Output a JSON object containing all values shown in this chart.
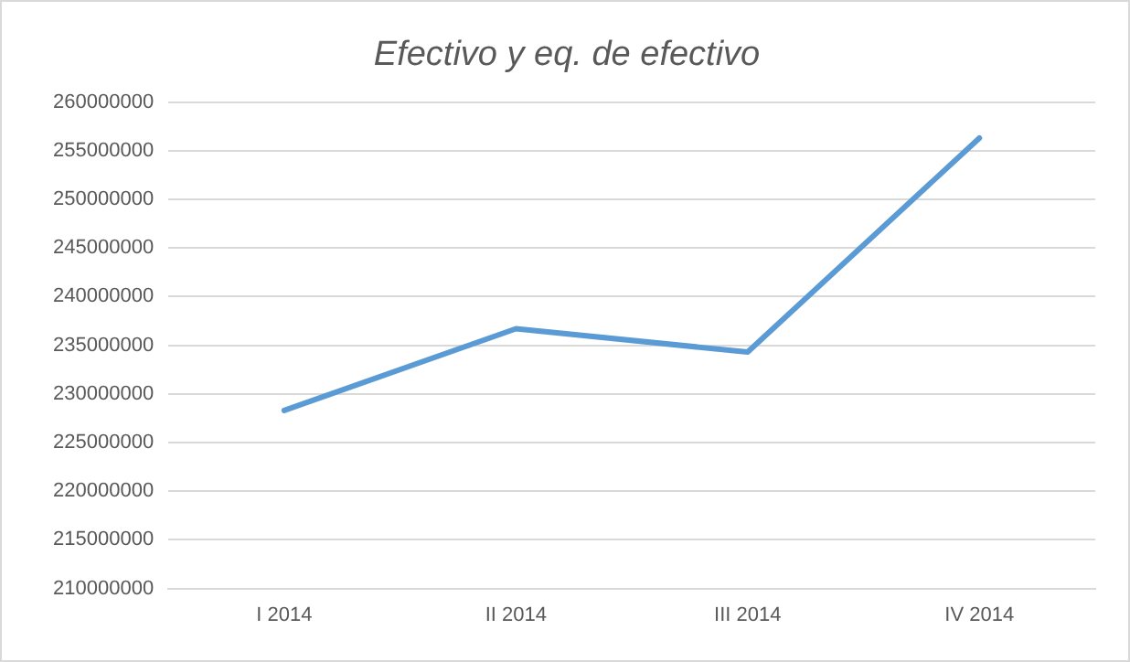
{
  "chart_data": {
    "type": "line",
    "title": "Efectivo y eq. de efectivo",
    "categories": [
      "I 2014",
      "II 2014",
      "III 2014",
      "IV 2014"
    ],
    "series": [
      {
        "color": "#5b9bd5",
        "values": [
          228300000,
          236700000,
          234300000,
          256300000
        ]
      }
    ],
    "ylim": [
      210000000,
      260000000
    ],
    "yticks": [
      210000000,
      215000000,
      220000000,
      225000000,
      230000000,
      235000000,
      240000000,
      245000000,
      250000000,
      255000000,
      260000000
    ],
    "grid": "y",
    "legend": false,
    "marker": "none",
    "line_style": "solid"
  }
}
